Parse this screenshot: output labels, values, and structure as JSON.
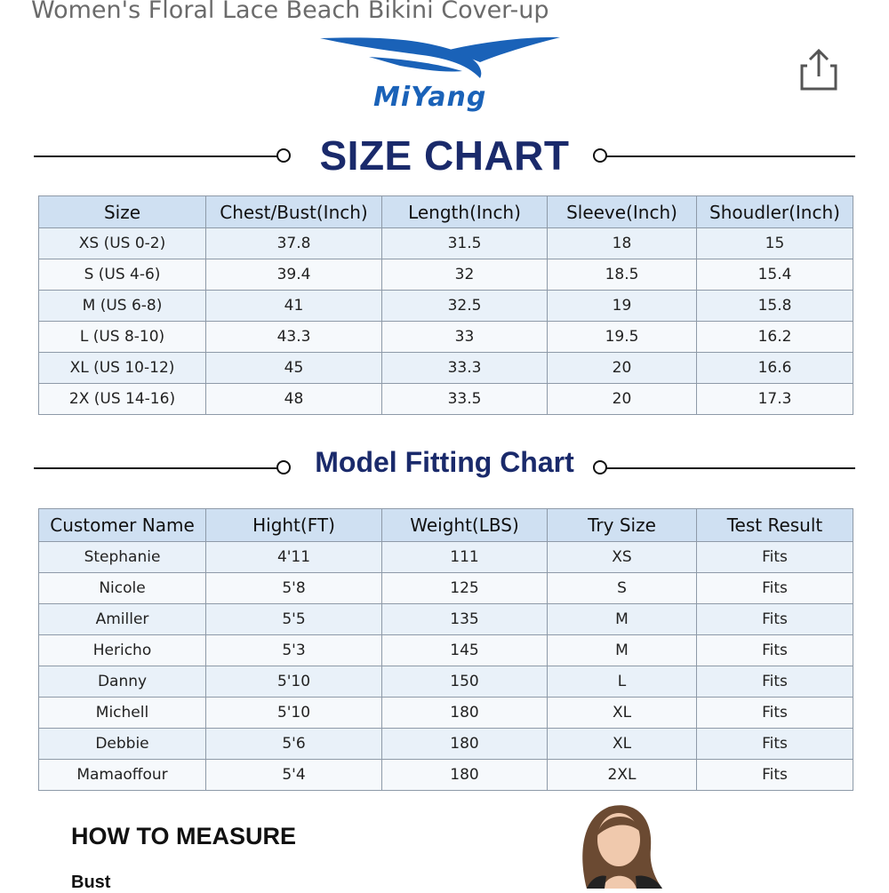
{
  "product": {
    "title": "Women's Floral Lace Beach Bikini Cover-up"
  },
  "header": {
    "share_icon": "share-icon"
  },
  "brand": {
    "name": "MiYang",
    "color": "#1a62b8"
  },
  "size_chart": {
    "heading": "SIZE CHART",
    "columns": [
      "Size",
      "Chest/Bust(Inch)",
      "Length(Inch)",
      "Sleeve(Inch)",
      "Shoudler(Inch)"
    ],
    "rows": [
      [
        "XS (US 0-2)",
        "37.8",
        "31.5",
        "18",
        "15"
      ],
      [
        "S (US 4-6)",
        "39.4",
        "32",
        "18.5",
        "15.4"
      ],
      [
        "M (US 6-8)",
        "41",
        "32.5",
        "19",
        "15.8"
      ],
      [
        "L (US 8-10)",
        "43.3",
        "33",
        "19.5",
        "16.2"
      ],
      [
        "XL (US 10-12)",
        "45",
        "33.3",
        "20",
        "16.6"
      ],
      [
        "2X (US 14-16)",
        "48",
        "33.5",
        "20",
        "17.3"
      ]
    ]
  },
  "model_chart": {
    "heading": "Model Fitting Chart",
    "columns": [
      "Customer Name",
      "Hight(FT)",
      "Weight(LBS)",
      "Try Size",
      "Test Result"
    ],
    "rows": [
      [
        "Stephanie",
        "4'11",
        "111",
        "XS",
        "Fits"
      ],
      [
        "Nicole",
        "5'8",
        "125",
        "S",
        "Fits"
      ],
      [
        "Amiller",
        "5'5",
        "135",
        "M",
        "Fits"
      ],
      [
        "Hericho",
        "5'3",
        "145",
        "M",
        "Fits"
      ],
      [
        "Danny",
        "5'10",
        "150",
        "L",
        "Fits"
      ],
      [
        "Michell",
        "5'10",
        "180",
        "XL",
        "Fits"
      ],
      [
        "Debbie",
        "5'6",
        "180",
        "XL",
        "Fits"
      ],
      [
        "Mamaoffour",
        "5'4",
        "180",
        "2XL",
        "Fits"
      ]
    ]
  },
  "measure": {
    "heading": "HOW TO MEASURE",
    "bust_label": "Bust"
  },
  "colors": {
    "heading": "#1a2a6b",
    "table_header": "#cfe0f2",
    "table_row": "#e9f1f9"
  }
}
